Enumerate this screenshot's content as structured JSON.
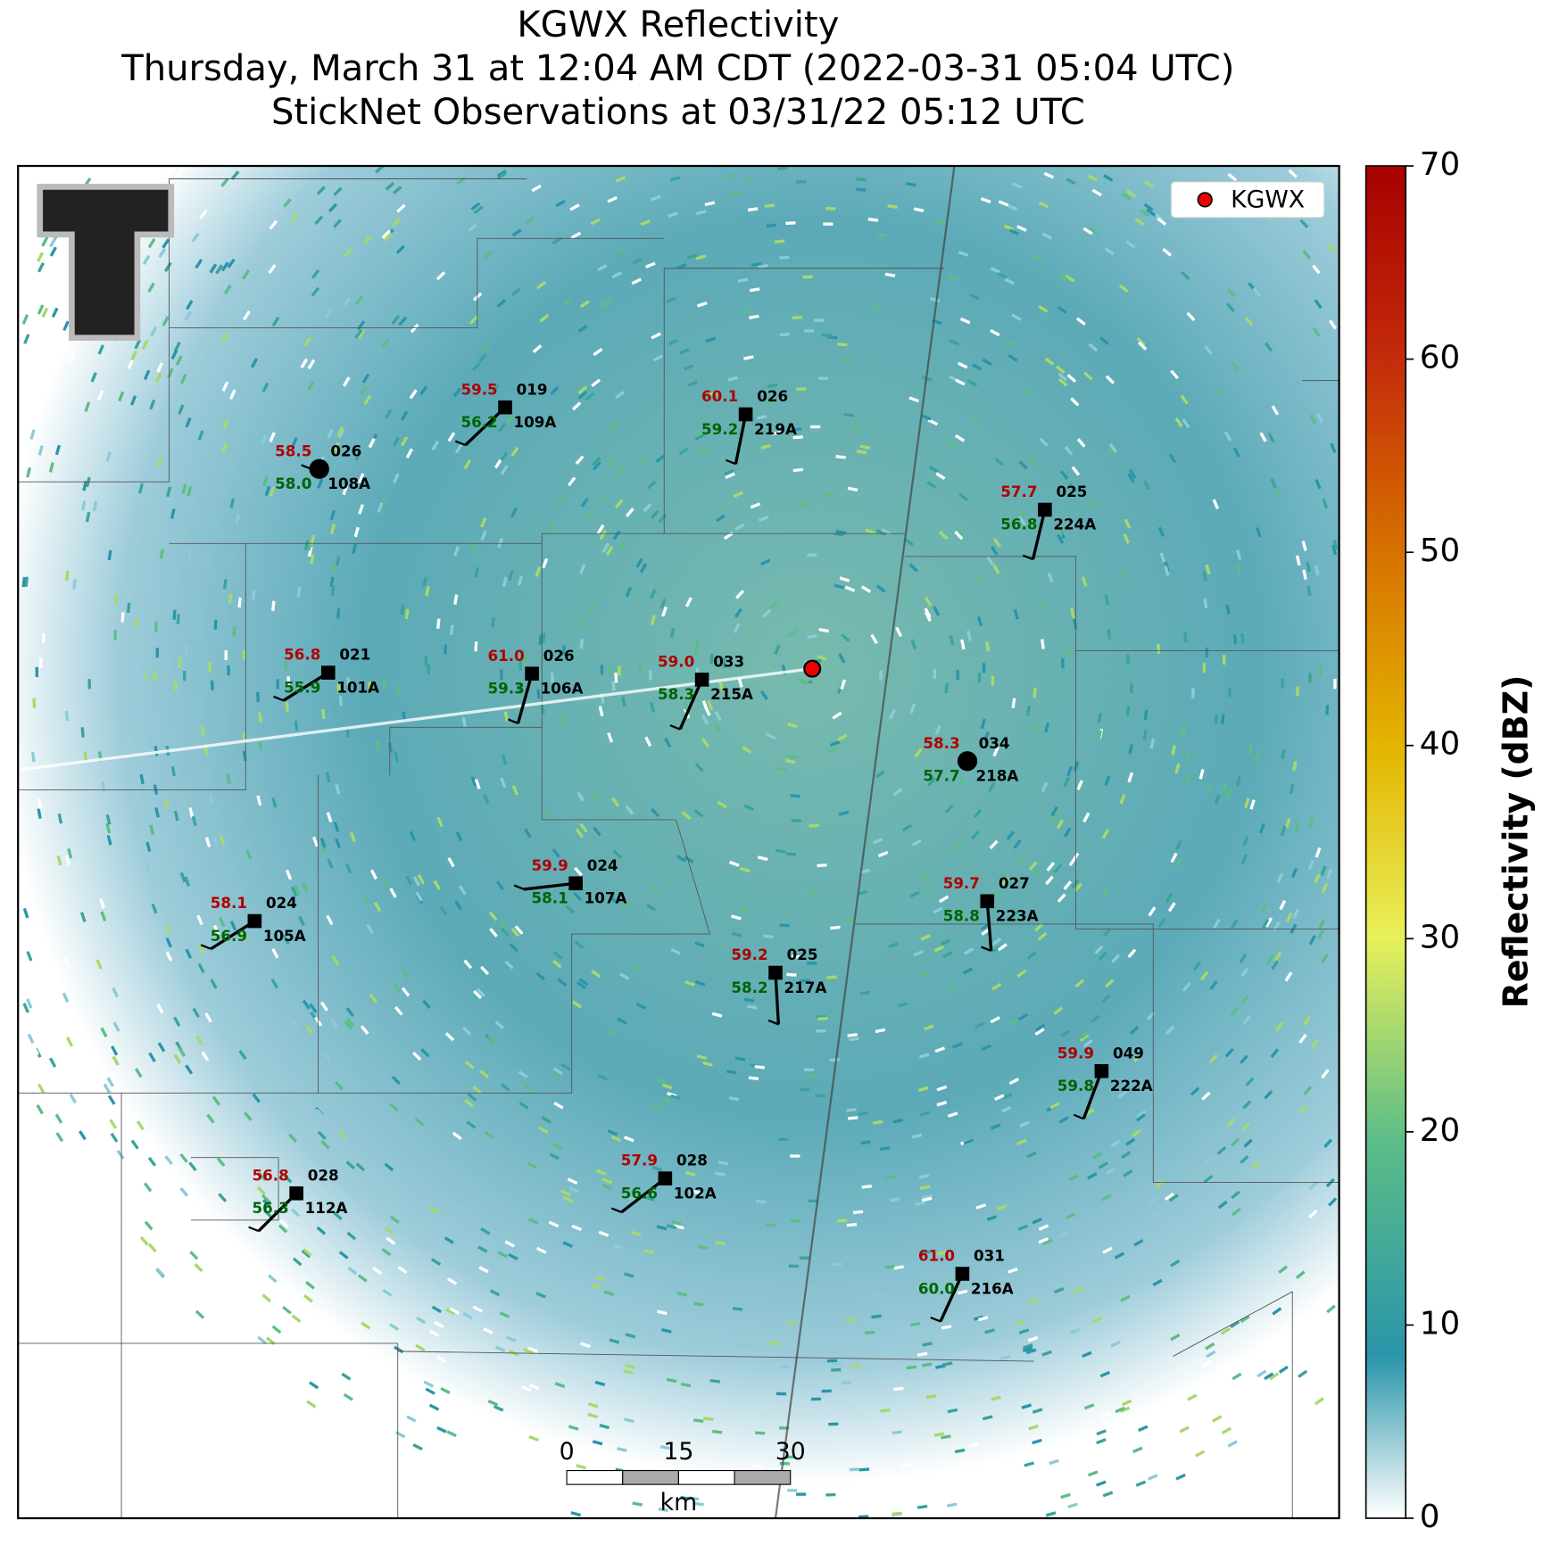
{
  "header": {
    "title": "KGWX Reflectivity",
    "subtitle": "Thursday, March 31 at 12:04 AM CDT (2022-03-31 05:04 UTC)",
    "subtitle2": "StickNet Observations at 03/31/22 05:12 UTC"
  },
  "legend": {
    "label": "KGWX"
  },
  "colorbar": {
    "label": "Reflectivity (dBZ)",
    "lim": [
      0,
      70
    ],
    "ticks": [
      0,
      10,
      20,
      30,
      40,
      50,
      60,
      70
    ]
  },
  "scale_bar": {
    "ticks": [
      0,
      15,
      30
    ],
    "unit": "km"
  },
  "stations": [
    {
      "id": "108A",
      "temp": "58.5",
      "pres": "026",
      "dew": "58.0"
    },
    {
      "id": "109A",
      "temp": "59.5",
      "pres": "019",
      "dew": "56.2"
    },
    {
      "id": "219A",
      "temp": "60.1",
      "pres": "026",
      "dew": "59.2"
    },
    {
      "id": "224A",
      "temp": "57.7",
      "pres": "025",
      "dew": "56.8"
    },
    {
      "id": "101A",
      "temp": "56.8",
      "pres": "021",
      "dew": "55.9"
    },
    {
      "id": "106A",
      "temp": "61.0",
      "pres": "026",
      "dew": "59.3"
    },
    {
      "id": "215A",
      "temp": "59.0",
      "pres": "033",
      "dew": "58.3"
    },
    {
      "id": "218A",
      "temp": "58.3",
      "pres": "034",
      "dew": "57.7"
    },
    {
      "id": "107A",
      "temp": "59.9",
      "pres": "024",
      "dew": "58.1"
    },
    {
      "id": "223A",
      "temp": "59.7",
      "pres": "027",
      "dew": "58.8"
    },
    {
      "id": "105A",
      "temp": "58.1",
      "pres": "024",
      "dew": "56.9"
    },
    {
      "id": "217A",
      "temp": "59.2",
      "pres": "025",
      "dew": "58.2"
    },
    {
      "id": "222A",
      "temp": "59.9",
      "pres": "049",
      "dew": "59.8"
    },
    {
      "id": "102A",
      "temp": "57.9",
      "pres": "028",
      "dew": "56.6"
    },
    {
      "id": "112A",
      "temp": "56.8",
      "pres": "028",
      "dew": "56.3"
    },
    {
      "id": "216A",
      "temp": "61.0",
      "pres": "031",
      "dew": "60.0"
    }
  ]
}
